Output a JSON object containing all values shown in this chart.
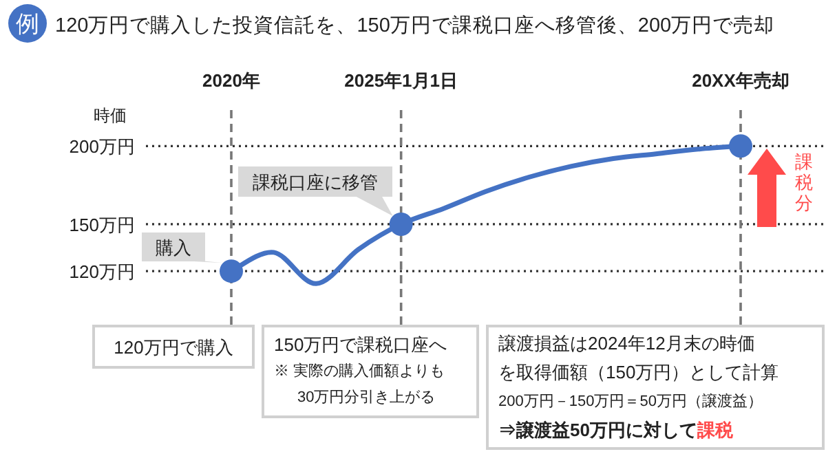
{
  "chart_data": {
    "type": "line",
    "title": "120万円で購入した投資信託を、150万円で課税口座へ移管後、200万円で売却",
    "ylabel": "時価",
    "categories": [
      "2020年",
      null,
      null,
      null,
      "2025年1月1日",
      null,
      null,
      null,
      null,
      null,
      null,
      null,
      "20XX年売却"
    ],
    "ylim": [
      84,
      223
    ],
    "yticks": [
      {
        "value": 120,
        "label": "120万円"
      },
      {
        "value": 150,
        "label": "150万円"
      },
      {
        "value": 200,
        "label": "200万円"
      }
    ],
    "grid": true,
    "series": [
      {
        "color": "#4472c4",
        "marker": "none",
        "values": [
          120,
          132,
          112,
          134,
          150,
          160,
          171,
          180,
          187,
          192,
          195,
          198,
          200
        ]
      },
      {
        "type": "scatter",
        "color": "#4472c4",
        "marker": "circle",
        "values": [
          120,
          null,
          null,
          null,
          150,
          null,
          null,
          null,
          null,
          null,
          null,
          null,
          200
        ]
      }
    ],
    "annotations": [
      "例",
      {
        "text": "購入",
        "x": "2020年",
        "y": 120
      },
      {
        "text": "課税口座に移管",
        "x": "2025年1月1日",
        "y": 150
      },
      "課税分",
      "120万円で購入",
      "150万円で課税口座へ",
      "※ 実際の購入価額よりも",
      "30万円分引き上がる",
      "譲渡損益は2024年12月末の時価",
      "を取得価額（150万円）として計算",
      "200万円－150万円＝50万円（譲渡益）",
      "⇒譲渡益50万円に対して",
      "課税"
    ]
  }
}
